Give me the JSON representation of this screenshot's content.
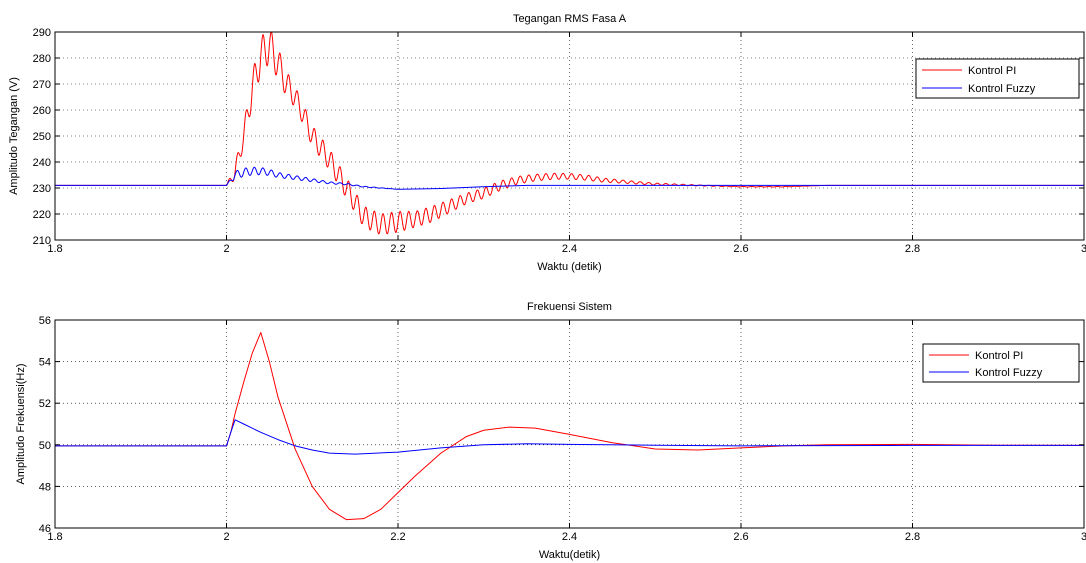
{
  "chart_data": [
    {
      "type": "line",
      "title": "Tegangan RMS Fasa A",
      "xlabel": "Waktu (detik)",
      "ylabel": "Amplitudo Tegangan (V)",
      "xlim": [
        1.8,
        3.0
      ],
      "ylim": [
        210,
        290
      ],
      "xticks": [
        "1.8",
        "2",
        "2.2",
        "2.4",
        "2.6",
        "2.8",
        "3"
      ],
      "yticks": [
        "210",
        "220",
        "230",
        "240",
        "250",
        "260",
        "270",
        "280",
        "290"
      ],
      "grid": true,
      "legend_position": "top-right",
      "series": [
        {
          "name": "Kontrol PI",
          "color": "#ff0000",
          "x": [
            1.8,
            2.0,
            2.01,
            2.02,
            2.03,
            2.04,
            2.05,
            2.06,
            2.07,
            2.08,
            2.09,
            2.1,
            2.12,
            2.14,
            2.16,
            2.18,
            2.2,
            2.22,
            2.24,
            2.26,
            2.28,
            2.3,
            2.32,
            2.34,
            2.36,
            2.38,
            2.4,
            2.42,
            2.44,
            2.46,
            2.5,
            2.55,
            2.6,
            2.65,
            2.7,
            2.8,
            2.9,
            3.0
          ],
          "values": [
            231,
            231,
            236,
            250,
            268,
            281,
            285,
            278,
            270,
            265,
            258,
            250,
            241,
            230,
            219,
            216,
            217,
            218,
            220,
            223,
            226,
            228,
            231,
            233,
            234,
            234.5,
            234.5,
            234,
            233,
            232.5,
            231.5,
            231,
            230.5,
            230.5,
            231,
            231,
            231,
            231
          ],
          "oscillation_amplitude": [
            0,
            0,
            3,
            4,
            6,
            7,
            7,
            6,
            5,
            4,
            4,
            4,
            4,
            4,
            4,
            4,
            4,
            3,
            3,
            2.5,
            2,
            2,
            1.8,
            1.5,
            1.3,
            1.2,
            1.1,
            1,
            0.8,
            0.6,
            0.4,
            0.2,
            0.1,
            0.1,
            0,
            0,
            0,
            0
          ]
        },
        {
          "name": "Kontrol Fuzzy",
          "color": "#0000ff",
          "x": [
            1.8,
            2.0,
            2.01,
            2.02,
            2.03,
            2.04,
            2.05,
            2.06,
            2.08,
            2.1,
            2.12,
            2.14,
            2.16,
            2.18,
            2.2,
            2.25,
            2.3,
            2.35,
            2.4,
            2.5,
            2.6,
            2.8,
            3.0
          ],
          "values": [
            231,
            231,
            235,
            236,
            236.5,
            236.5,
            236,
            235,
            234,
            233,
            232,
            231.5,
            230.5,
            230,
            229.5,
            229.8,
            230.5,
            231,
            231,
            231,
            231,
            231,
            231
          ],
          "oscillation_amplitude": [
            0,
            0,
            1.5,
            1.6,
            1.5,
            1.4,
            1.2,
            1.0,
            0.8,
            0.6,
            0.4,
            0.3,
            0.2,
            0.1,
            0,
            0,
            0,
            0,
            0,
            0,
            0,
            0,
            0
          ]
        }
      ]
    },
    {
      "type": "line",
      "title": "Frekuensi Sistem",
      "xlabel": "Waktu(detik)",
      "ylabel": "Amplitudo Frekuensi(Hz)",
      "xlim": [
        1.8,
        3.0
      ],
      "ylim": [
        46,
        56
      ],
      "xticks": [
        "1.8",
        "2",
        "2.2",
        "2.4",
        "2.6",
        "2.8",
        "3"
      ],
      "yticks": [
        "46",
        "48",
        "50",
        "52",
        "54",
        "56"
      ],
      "grid": true,
      "legend_position": "top-right",
      "series": [
        {
          "name": "Kontrol PI",
          "color": "#ff0000",
          "x": [
            1.8,
            2.0,
            2.005,
            2.01,
            2.02,
            2.03,
            2.04,
            2.05,
            2.06,
            2.08,
            2.1,
            2.12,
            2.14,
            2.16,
            2.18,
            2.2,
            2.22,
            2.25,
            2.28,
            2.3,
            2.33,
            2.36,
            2.4,
            2.45,
            2.5,
            2.55,
            2.6,
            2.65,
            2.7,
            2.8,
            2.9,
            3.0
          ],
          "values": [
            49.95,
            49.95,
            50.6,
            51.5,
            53.0,
            54.4,
            55.4,
            54.0,
            52.3,
            49.8,
            48.0,
            46.9,
            46.4,
            46.45,
            46.9,
            47.7,
            48.5,
            49.6,
            50.4,
            50.7,
            50.85,
            50.8,
            50.5,
            50.1,
            49.8,
            49.75,
            49.85,
            49.95,
            50.0,
            50.02,
            49.98,
            49.97
          ]
        },
        {
          "name": "Kontrol Fuzzy",
          "color": "#0000ff",
          "x": [
            1.8,
            2.0,
            2.005,
            2.01,
            2.02,
            2.04,
            2.06,
            2.08,
            2.1,
            2.12,
            2.15,
            2.2,
            2.25,
            2.3,
            2.35,
            2.4,
            2.5,
            2.6,
            2.8,
            3.0
          ],
          "values": [
            49.95,
            49.95,
            50.6,
            51.2,
            51.0,
            50.6,
            50.25,
            49.95,
            49.75,
            49.6,
            49.55,
            49.65,
            49.85,
            50.0,
            50.05,
            50.02,
            49.98,
            49.95,
            49.97,
            49.97
          ]
        }
      ]
    }
  ]
}
